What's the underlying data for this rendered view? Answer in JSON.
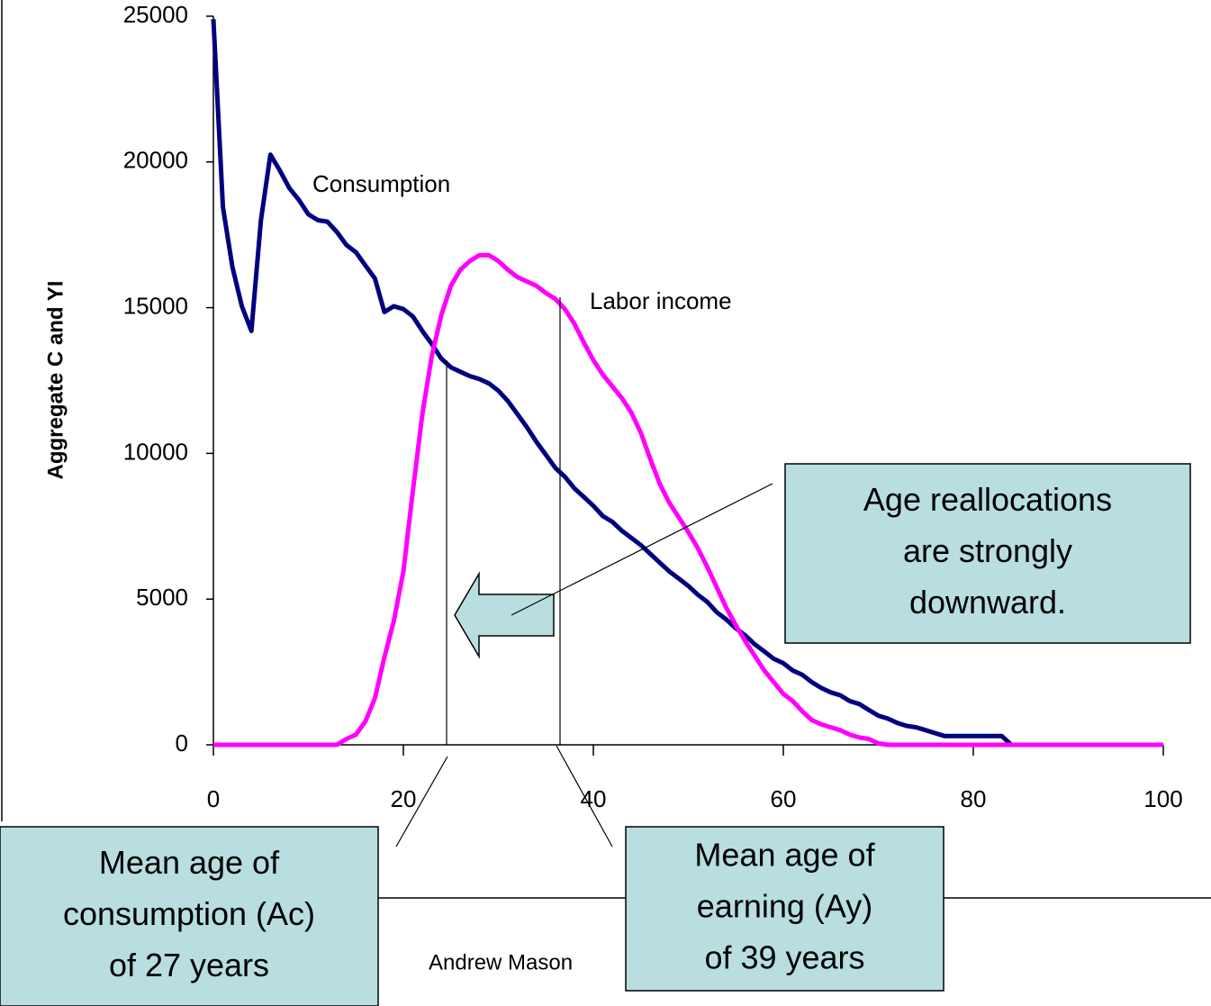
{
  "chart_data": {
    "type": "line",
    "ylabel": "Aggregate C and YI",
    "x": [
      0,
      1,
      2,
      3,
      4,
      5,
      6,
      7,
      8,
      9,
      10,
      11,
      12,
      13,
      14,
      15,
      16,
      17,
      18,
      19,
      20,
      21,
      22,
      23,
      24,
      25,
      26,
      27,
      28,
      29,
      30,
      31,
      32,
      33,
      34,
      35,
      36,
      37,
      38,
      39,
      40,
      41,
      42,
      43,
      44,
      45,
      46,
      47,
      48,
      49,
      50,
      51,
      52,
      53,
      54,
      55,
      56,
      57,
      58,
      59,
      60,
      61,
      62,
      63,
      64,
      65,
      66,
      67,
      68,
      69,
      70,
      71,
      72,
      73,
      74,
      75,
      76,
      77,
      78,
      79,
      80,
      81,
      82,
      83,
      84,
      85,
      86,
      87,
      88,
      89,
      90,
      91,
      92,
      93,
      94,
      95,
      96,
      97,
      98,
      99,
      100
    ],
    "series": [
      {
        "name": "Consumption",
        "color": "#000080",
        "values": [
          24900,
          18450,
          16400,
          15050,
          14200,
          18000,
          20250,
          19700,
          19100,
          18700,
          18200,
          18000,
          17950,
          17600,
          17150,
          16900,
          16450,
          16000,
          14850,
          15050,
          14950,
          14700,
          14200,
          13750,
          13250,
          12950,
          12800,
          12650,
          12550,
          12400,
          12150,
          11800,
          11350,
          10900,
          10400,
          9950,
          9500,
          9200,
          8800,
          8500,
          8200,
          7850,
          7650,
          7350,
          7100,
          6850,
          6550,
          6250,
          5950,
          5700,
          5450,
          5150,
          4900,
          4550,
          4300,
          4000,
          3750,
          3450,
          3200,
          2950,
          2800,
          2550,
          2400,
          2150,
          1950,
          1800,
          1700,
          1500,
          1400,
          1200,
          1000,
          900,
          750,
          650,
          600,
          500,
          400,
          300,
          300,
          300,
          300,
          300,
          300,
          300,
          0,
          0,
          0,
          0,
          0,
          0,
          0,
          0,
          0,
          0,
          0,
          0,
          0,
          0,
          0,
          0,
          0
        ]
      },
      {
        "name": "Labor income",
        "color": "#ff00ff",
        "values": [
          0,
          0,
          0,
          0,
          0,
          0,
          0,
          0,
          0,
          0,
          0,
          0,
          0,
          0,
          200,
          350,
          800,
          1600,
          3000,
          4250,
          5950,
          8700,
          11350,
          13350,
          14750,
          15750,
          16300,
          16600,
          16800,
          16800,
          16600,
          16300,
          16050,
          15900,
          15750,
          15500,
          15300,
          14950,
          14450,
          13800,
          13200,
          12700,
          12300,
          11900,
          11400,
          10700,
          9800,
          8950,
          8300,
          7800,
          7300,
          6750,
          6100,
          5400,
          4700,
          4100,
          3550,
          3050,
          2550,
          2150,
          1750,
          1500,
          1150,
          850,
          700,
          600,
          500,
          350,
          250,
          200,
          50,
          0,
          0,
          0,
          0,
          0,
          0,
          0,
          0,
          0,
          0,
          0,
          0,
          0,
          0,
          0,
          0,
          0,
          0,
          0,
          0,
          0,
          0,
          0,
          0,
          0,
          0,
          0,
          0,
          0,
          0
        ]
      }
    ],
    "xlim": [
      0,
      100
    ],
    "xticks": [
      0,
      20,
      40,
      60,
      80,
      100
    ],
    "ylim": [
      0,
      25000
    ],
    "yticks": [
      0,
      5000,
      10000,
      15000,
      20000,
      25000
    ],
    "text_boxes": [
      {
        "lines": [
          "Age reallocations",
          "are strongly",
          "downward."
        ]
      },
      {
        "lines": [
          "Mean age of",
          "consumption (Ac)",
          "of 27 years"
        ]
      },
      {
        "lines": [
          "Mean age of",
          "earning (Ay)",
          "of 39 years"
        ]
      }
    ],
    "footer": "Andrew Mason"
  }
}
